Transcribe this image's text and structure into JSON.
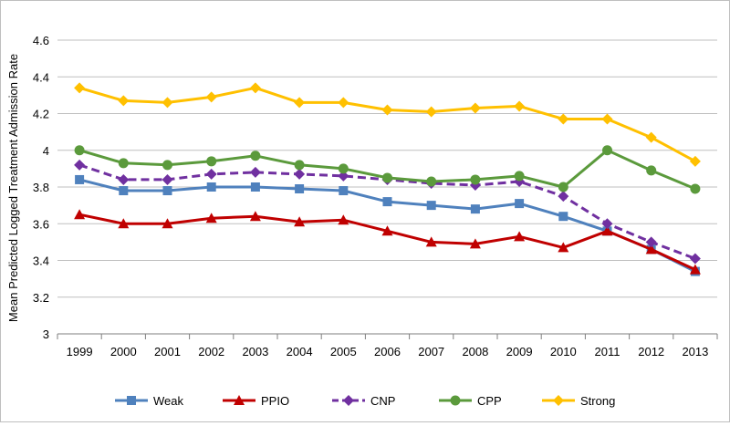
{
  "chart_data": {
    "type": "line",
    "title": "",
    "xlabel": "",
    "ylabel": "Mean Predicted Logged Treatment Admission Rate",
    "ylim": [
      3,
      4.6
    ],
    "yticks": [
      "3",
      "3.2",
      "3.4",
      "3.6",
      "3.8",
      "4",
      "4.2",
      "4.4",
      "4.6"
    ],
    "ytick_values": [
      3,
      3.2,
      3.4,
      3.6,
      3.8,
      4,
      4.2,
      4.4,
      4.6
    ],
    "grid": "horizontal",
    "legend_position": "bottom",
    "categories": [
      "1999",
      "2000",
      "2001",
      "2002",
      "2003",
      "2004",
      "2005",
      "2006",
      "2007",
      "2008",
      "2009",
      "2010",
      "2011",
      "2012",
      "2013"
    ],
    "series": [
      {
        "name": "Weak",
        "color": "#4f81bd",
        "marker": "square",
        "dash": "solid",
        "values": [
          3.84,
          3.78,
          3.78,
          3.8,
          3.8,
          3.79,
          3.78,
          3.72,
          3.7,
          3.68,
          3.71,
          3.64,
          3.56,
          3.46,
          3.34
        ]
      },
      {
        "name": "PPIO",
        "color": "#c00000",
        "marker": "triangle",
        "dash": "solid",
        "values": [
          3.65,
          3.6,
          3.6,
          3.63,
          3.64,
          3.61,
          3.62,
          3.56,
          3.5,
          3.49,
          3.53,
          3.47,
          3.56,
          3.46,
          3.35
        ]
      },
      {
        "name": "CNP",
        "color": "#7030a0",
        "marker": "diamond",
        "dash": "dashed",
        "values": [
          3.92,
          3.84,
          3.84,
          3.87,
          3.88,
          3.87,
          3.86,
          3.84,
          3.82,
          3.81,
          3.83,
          3.75,
          3.6,
          3.5,
          3.41
        ]
      },
      {
        "name": "CPP",
        "color": "#5b9a3c",
        "marker": "circle",
        "dash": "solid",
        "values": [
          4.0,
          3.93,
          3.92,
          3.94,
          3.97,
          3.92,
          3.9,
          3.85,
          3.83,
          3.84,
          3.86,
          3.8,
          4.0,
          3.89,
          3.79
        ]
      },
      {
        "name": "Strong",
        "color": "#ffc000",
        "marker": "diamond",
        "dash": "solid",
        "values": [
          4.34,
          4.27,
          4.26,
          4.29,
          4.34,
          4.26,
          4.26,
          4.22,
          4.21,
          4.23,
          4.24,
          4.17,
          4.17,
          4.07,
          3.94
        ]
      }
    ]
  }
}
